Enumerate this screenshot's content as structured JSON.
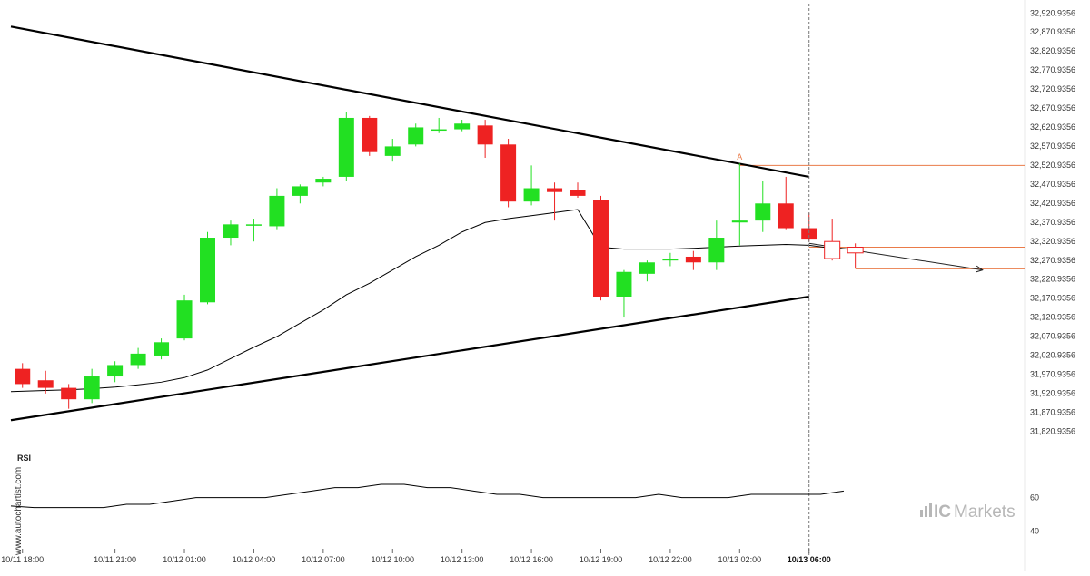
{
  "brand": {
    "prefix": "IC",
    "name": "Markets"
  },
  "watermark": "www.autochartist.com",
  "chart_data": {
    "type": "candlestick",
    "title": "",
    "pattern": "Triangle",
    "y_tick_labels": [
      "32,920.9356",
      "32,870.9356",
      "32,820.9356",
      "32,770.9356",
      "32,720.9356",
      "32,670.9356",
      "32,620.9356",
      "32,570.9356",
      "32,520.9356",
      "32,470.9356",
      "32,420.9356",
      "32,370.9356",
      "32,320.9356",
      "32,270.9356",
      "32,220.9356",
      "32,170.9356",
      "32,120.9356",
      "32,070.9356",
      "32,020.9356",
      "31,970.9356",
      "31,920.9356",
      "31,870.9356",
      "31,820.9356"
    ],
    "ylim": [
      31790.9356,
      32935.9356
    ],
    "x_tick_labels": [
      "10/11 18:00",
      "10/11 21:00",
      "10/12 01:00",
      "10/12 04:00",
      "10/12 07:00",
      "10/12 10:00",
      "10/12 13:00",
      "10/12 16:00",
      "10/12 19:00",
      "10/12 22:00",
      "10/13 02:00",
      "10/13 06:00"
    ],
    "x_tick_candle_index": [
      0,
      4,
      7,
      10,
      13,
      16,
      19,
      22,
      25,
      28,
      31,
      34
    ],
    "highlighted_x_label": "10/13 06:00",
    "candles": [
      {
        "o": 31985,
        "h": 32000,
        "l": 31935,
        "c": 31945
      },
      {
        "o": 31955,
        "h": 31980,
        "l": 31920,
        "c": 31935
      },
      {
        "o": 31935,
        "h": 31945,
        "l": 31880,
        "c": 31905
      },
      {
        "o": 31905,
        "h": 31985,
        "l": 31895,
        "c": 31965
      },
      {
        "o": 31965,
        "h": 32005,
        "l": 31950,
        "c": 31995
      },
      {
        "o": 31995,
        "h": 32040,
        "l": 31985,
        "c": 32025
      },
      {
        "o": 32020,
        "h": 32065,
        "l": 32010,
        "c": 32055
      },
      {
        "o": 32065,
        "h": 32180,
        "l": 32060,
        "c": 32165
      },
      {
        "o": 32160,
        "h": 32345,
        "l": 32155,
        "c": 32330
      },
      {
        "o": 32330,
        "h": 32375,
        "l": 32310,
        "c": 32365
      },
      {
        "o": 32365,
        "h": 32380,
        "l": 32320,
        "c": 32365
      },
      {
        "o": 32360,
        "h": 32460,
        "l": 32350,
        "c": 32440
      },
      {
        "o": 32440,
        "h": 32470,
        "l": 32420,
        "c": 32465
      },
      {
        "o": 32475,
        "h": 32490,
        "l": 32465,
        "c": 32485
      },
      {
        "o": 32490,
        "h": 32660,
        "l": 32480,
        "c": 32645
      },
      {
        "o": 32645,
        "h": 32650,
        "l": 32545,
        "c": 32555
      },
      {
        "o": 32545,
        "h": 32590,
        "l": 32530,
        "c": 32570
      },
      {
        "o": 32575,
        "h": 32630,
        "l": 32570,
        "c": 32620
      },
      {
        "o": 32615,
        "h": 32645,
        "l": 32605,
        "c": 32615
      },
      {
        "o": 32615,
        "h": 32640,
        "l": 32610,
        "c": 32630
      },
      {
        "o": 32625,
        "h": 32640,
        "l": 32540,
        "c": 32575
      },
      {
        "o": 32575,
        "h": 32590,
        "l": 32410,
        "c": 32425
      },
      {
        "o": 32425,
        "h": 32520,
        "l": 32415,
        "c": 32460
      },
      {
        "o": 32460,
        "h": 32475,
        "l": 32375,
        "c": 32450
      },
      {
        "o": 32455,
        "h": 32475,
        "l": 32435,
        "c": 32440
      },
      {
        "o": 32430,
        "h": 32440,
        "l": 32165,
        "c": 32175
      },
      {
        "o": 32175,
        "h": 32245,
        "l": 32120,
        "c": 32240
      },
      {
        "o": 32235,
        "h": 32270,
        "l": 32215,
        "c": 32265
      },
      {
        "o": 32270,
        "h": 32290,
        "l": 32255,
        "c": 32275
      },
      {
        "o": 32280,
        "h": 32295,
        "l": 32245,
        "c": 32265
      },
      {
        "o": 32265,
        "h": 32375,
        "l": 32245,
        "c": 32330
      },
      {
        "o": 32370,
        "h": 32525,
        "l": 32310,
        "c": 32375
      },
      {
        "o": 32375,
        "h": 32480,
        "l": 32345,
        "c": 32420
      },
      {
        "o": 32420,
        "h": 32490,
        "l": 32350,
        "c": 32355
      },
      {
        "o": 32355,
        "h": 32395,
        "l": 32320,
        "c": 32325
      },
      {
        "o": 32320,
        "h": 32380,
        "l": 32270,
        "c": 32275,
        "hollow": true
      },
      {
        "o": 32290,
        "h": 32315,
        "l": 32250,
        "c": 32305,
        "hollow": true
      }
    ],
    "moving_average": [
      31925,
      31928,
      31930,
      31933,
      31937,
      31943,
      31950,
      31962,
      31982,
      32012,
      32042,
      32070,
      32105,
      32140,
      32180,
      32210,
      32245,
      32280,
      32310,
      32345,
      32370,
      32380,
      32388,
      32396,
      32404,
      32305,
      32300,
      32300,
      32300,
      32302,
      32305,
      32308,
      32310,
      32312,
      32310,
      32302,
      32300
    ],
    "pattern_lines": {
      "upper": {
        "from": {
          "x": -0.5,
          "y": 32885
        },
        "to": {
          "x": 34,
          "y": 32490
        }
      },
      "lower": {
        "from": {
          "x": -0.5,
          "y": 31850
        },
        "to": {
          "x": 34,
          "y": 32175
        }
      }
    },
    "projection": {
      "from": {
        "x": 34,
        "y": 32315
      },
      "to": {
        "x": 41.5,
        "y": 32245
      }
    },
    "horizontal_levels": [
      {
        "y": 32520,
        "from_x": 31
      },
      {
        "y": 32305,
        "from_x": 34
      },
      {
        "y": 32248,
        "from_x": 36
      }
    ],
    "point_marker": {
      "label": "A",
      "x": 31,
      "y": 32530
    },
    "current_time_index": 34,
    "colors": {
      "up": "#22e022",
      "down": "#ee2222",
      "hollow": "#ee2222",
      "pattern": "#000000",
      "ma": "#000000",
      "level": "#ea7b49",
      "cursor": "#777777"
    },
    "rsi": {
      "title": "RSI",
      "tick_labels": [
        "60",
        "40"
      ],
      "ylim": [
        32,
        80
      ],
      "values": [
        55,
        54,
        54,
        54,
        54,
        56,
        56,
        58,
        60,
        60,
        60,
        60,
        62,
        64,
        66,
        66,
        68,
        68,
        66,
        66,
        64,
        62,
        62,
        60,
        60,
        60,
        60,
        60,
        62,
        60,
        60,
        60,
        62,
        62,
        62,
        62,
        64
      ]
    }
  }
}
